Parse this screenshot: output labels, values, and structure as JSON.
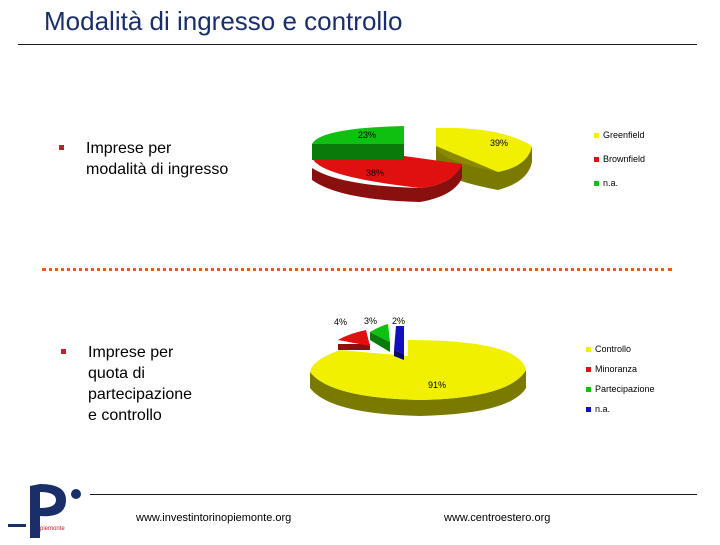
{
  "slide": {
    "title": "Modalità di ingresso e controllo"
  },
  "bullets": [
    {
      "lines": [
        "Imprese per",
        "modalità di ingresso"
      ]
    },
    {
      "lines": [
        "Imprese per",
        "quota di",
        "partecipazione",
        "e controllo"
      ]
    }
  ],
  "chart_data": [
    {
      "type": "pie",
      "categories": [
        "Greenfield",
        "Brownfield",
        "n.a."
      ],
      "values": [
        39,
        38,
        23
      ],
      "labels": [
        "39%",
        "38%",
        "23%"
      ],
      "colors": [
        "#f0f000",
        "#e01010",
        "#10c010"
      ],
      "legend_position": "right",
      "style": "3d-exploded"
    },
    {
      "type": "pie",
      "categories": [
        "Controllo",
        "Minoranza",
        "Partecipazione",
        "n.a."
      ],
      "values": [
        91,
        4,
        3,
        2
      ],
      "labels": [
        "91%",
        "4%",
        "3%",
        "2%"
      ],
      "colors": [
        "#f0f000",
        "#e01010",
        "#10c010",
        "#1010c0"
      ],
      "legend_position": "right",
      "style": "3d-exploded"
    }
  ],
  "footer": {
    "left_link": "www.investintorinopiemonte.org",
    "right_link": "www.centroestero.org"
  },
  "logo": {
    "text": "piemonte"
  }
}
